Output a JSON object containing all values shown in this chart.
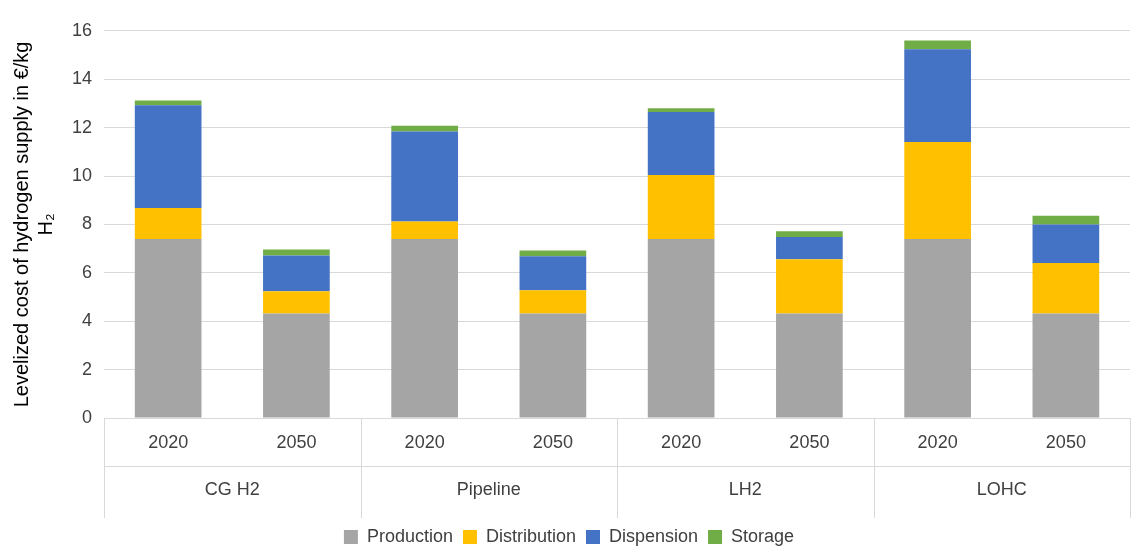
{
  "chart_data": {
    "type": "bar",
    "stacked": true,
    "ylabel": "Levelized cost of hydrogen supply in €/kg H₂",
    "categories": [
      "2020",
      "2050",
      "2020",
      "2050",
      "2020",
      "2050",
      "2020",
      "2050"
    ],
    "annotations": [
      "CG H2",
      "Pipeline",
      "LH2",
      "LOHC"
    ],
    "series": [
      {
        "name": "Production",
        "color": "#a5a5a5",
        "values": [
          7.4,
          4.32,
          7.4,
          4.32,
          7.4,
          4.32,
          7.4,
          4.32
        ]
      },
      {
        "name": "Distribution",
        "color": "#ffc000",
        "values": [
          1.28,
          0.92,
          0.72,
          0.96,
          2.64,
          2.24,
          4.0,
          2.08
        ]
      },
      {
        "name": "Dispension",
        "color": "#4472c4",
        "values": [
          4.24,
          1.48,
          3.72,
          1.4,
          2.6,
          0.92,
          3.84,
          1.6
        ]
      },
      {
        "name": "Storage",
        "color": "#70ad47",
        "values": [
          0.2,
          0.24,
          0.24,
          0.24,
          0.16,
          0.24,
          0.36,
          0.36
        ]
      }
    ],
    "ylim": [
      0,
      16
    ],
    "yticks": [
      0,
      2,
      4,
      6,
      8,
      10,
      12,
      14,
      16
    ],
    "grid": "y",
    "legend": "bottom"
  }
}
